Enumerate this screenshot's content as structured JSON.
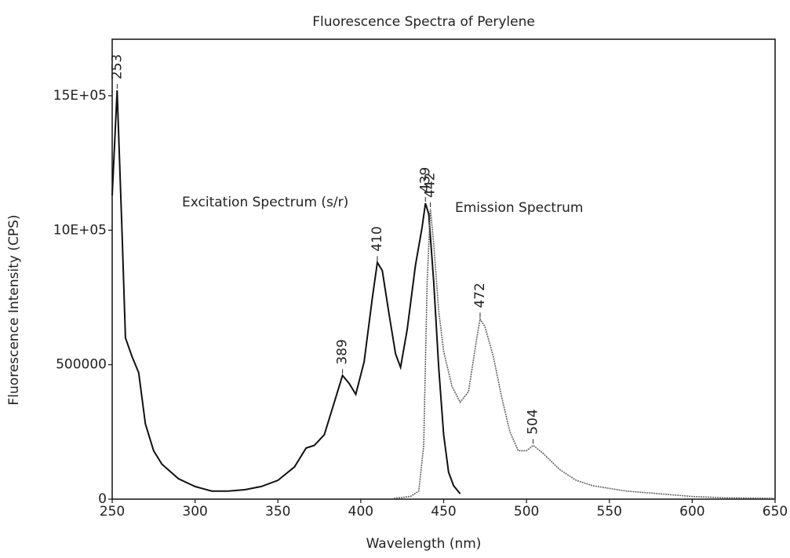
{
  "chart_data": {
    "type": "line",
    "title": "Fluorescence Spectra of Perylene",
    "xlabel": "Wavelength (nm)",
    "ylabel": "Fluorescence Intensity (CPS)",
    "xlim": [
      250,
      650
    ],
    "xticks": [
      250,
      300,
      350,
      400,
      450,
      500,
      550,
      600,
      650
    ],
    "ylim": [
      0,
      1710000
    ],
    "yticks": [
      0,
      500000,
      {
        "value": 1000000,
        "label": "10E+05"
      },
      {
        "value": 1500000,
        "label": "15E+05"
      }
    ],
    "grid": false,
    "series": [
      {
        "name": "Excitation Spectrum (s/r)",
        "color": "#111111",
        "x": [
          250,
          253,
          256,
          258,
          262,
          266,
          270,
          275,
          280,
          290,
          300,
          310,
          320,
          330,
          340,
          350,
          360,
          367,
          372,
          378,
          383,
          389,
          393,
          397,
          402,
          407,
          410,
          413,
          417,
          421,
          424,
          428,
          433,
          437,
          439,
          441,
          444,
          447,
          450,
          453,
          456,
          460
        ],
        "values": [
          1130000,
          1520000,
          980000,
          600000,
          530000,
          470000,
          280000,
          180000,
          130000,
          76000,
          47000,
          30000,
          30000,
          35000,
          47000,
          70000,
          120000,
          190000,
          200000,
          240000,
          340000,
          460000,
          430000,
          390000,
          510000,
          750000,
          880000,
          850000,
          690000,
          540000,
          490000,
          630000,
          870000,
          1010000,
          1100000,
          1060000,
          810000,
          490000,
          240000,
          100000,
          50000,
          20000
        ]
      },
      {
        "name": "Emission Spectrum",
        "color": "#666666",
        "x": [
          420,
          430,
          435,
          438,
          440,
          442,
          444,
          447,
          450,
          455,
          460,
          465,
          470,
          472,
          475,
          480,
          485,
          490,
          495,
          500,
          504,
          510,
          520,
          530,
          540,
          550,
          560,
          580,
          600,
          620,
          650
        ],
        "values": [
          3000,
          10000,
          30000,
          200000,
          800000,
          1080000,
          950000,
          700000,
          550000,
          420000,
          360000,
          400000,
          600000,
          670000,
          640000,
          530000,
          380000,
          250000,
          180000,
          180000,
          200000,
          170000,
          110000,
          70000,
          50000,
          40000,
          30000,
          20000,
          10000,
          5000,
          3000
        ]
      }
    ],
    "peaks": [
      {
        "x": 253,
        "y": 1520000
      },
      {
        "x": 389,
        "y": 460000
      },
      {
        "x": 410,
        "y": 880000
      },
      {
        "x": 439,
        "y": 1100000
      },
      {
        "x": 442,
        "y": 1080000
      },
      {
        "x": 472,
        "y": 670000
      },
      {
        "x": 504,
        "y": 200000
      }
    ]
  }
}
